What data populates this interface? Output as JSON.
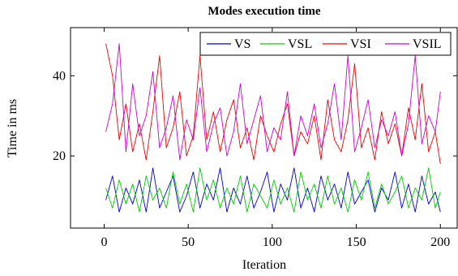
{
  "chart_data": {
    "type": "line",
    "title": "Modes execution time",
    "xlabel": "Iteration",
    "ylabel": "Time in ms",
    "xlim": [
      -20,
      210
    ],
    "ylim": [
      2,
      52
    ],
    "xticks": [
      0,
      50,
      100,
      150,
      200
    ],
    "xtick_labels": [
      "0",
      "50",
      "100",
      "150",
      "200"
    ],
    "yticks": [
      20,
      40
    ],
    "ytick_labels": [
      "20",
      "40"
    ],
    "grid": false,
    "legend": {
      "position": "top-right",
      "orientation": "horizontal"
    },
    "series": [
      {
        "name": "VS",
        "color": "#0000cc",
        "x": [
          1,
          5,
          9,
          13,
          17,
          21,
          25,
          29,
          33,
          37,
          41,
          45,
          49,
          53,
          57,
          61,
          65,
          69,
          73,
          77,
          81,
          85,
          89,
          93,
          97,
          101,
          105,
          109,
          113,
          117,
          121,
          125,
          129,
          133,
          137,
          141,
          145,
          149,
          153,
          157,
          161,
          165,
          169,
          173,
          177,
          181,
          185,
          189,
          193,
          197,
          200
        ],
        "values": [
          9,
          15,
          6,
          12,
          8,
          14,
          6,
          17,
          7,
          11,
          15,
          6,
          10,
          16,
          7,
          13,
          9,
          17,
          6,
          12,
          8,
          15,
          7,
          11,
          16,
          6,
          13,
          9,
          17,
          7,
          12,
          6,
          15,
          9,
          13,
          7,
          16,
          8,
          11,
          14,
          6,
          12,
          9,
          16,
          7,
          13,
          6,
          15,
          8,
          11,
          6
        ]
      },
      {
        "name": "VSL",
        "color": "#00cc00",
        "x": [
          1,
          5,
          9,
          13,
          17,
          21,
          25,
          29,
          33,
          37,
          41,
          45,
          49,
          53,
          57,
          61,
          65,
          69,
          73,
          77,
          81,
          85,
          89,
          93,
          97,
          101,
          105,
          109,
          113,
          117,
          121,
          125,
          129,
          133,
          137,
          141,
          145,
          149,
          153,
          157,
          161,
          165,
          169,
          173,
          177,
          181,
          185,
          189,
          193,
          197,
          200
        ],
        "values": [
          12,
          7,
          14,
          8,
          13,
          6,
          15,
          9,
          12,
          7,
          16,
          8,
          13,
          6,
          17,
          9,
          14,
          7,
          12,
          8,
          15,
          6,
          13,
          10,
          7,
          14,
          8,
          12,
          6,
          16,
          9,
          13,
          7,
          15,
          8,
          12,
          6,
          14,
          9,
          16,
          7,
          13,
          8,
          11,
          15,
          7,
          12,
          9,
          17,
          7,
          11
        ]
      },
      {
        "name": "VSI",
        "color": "#ee0000",
        "x": [
          1,
          5,
          9,
          13,
          17,
          21,
          25,
          29,
          33,
          37,
          41,
          45,
          49,
          53,
          57,
          61,
          65,
          69,
          73,
          77,
          81,
          85,
          89,
          93,
          97,
          101,
          105,
          109,
          113,
          117,
          121,
          125,
          129,
          133,
          137,
          141,
          145,
          149,
          153,
          157,
          161,
          165,
          169,
          173,
          177,
          181,
          185,
          189,
          193,
          197,
          200
        ],
        "values": [
          48,
          40,
          24,
          33,
          21,
          28,
          19,
          31,
          45,
          22,
          27,
          36,
          20,
          25,
          45,
          24,
          31,
          21,
          29,
          34,
          22,
          27,
          19,
          30,
          25,
          21,
          28,
          33,
          20,
          26,
          23,
          30,
          19,
          34,
          24,
          21,
          29,
          43,
          22,
          27,
          19,
          31,
          23,
          28,
          20,
          32,
          24,
          38,
          21,
          26,
          18
        ]
      },
      {
        "name": "VSIL",
        "color": "#cc00cc",
        "x": [
          1,
          5,
          9,
          13,
          17,
          21,
          25,
          29,
          33,
          37,
          41,
          45,
          49,
          53,
          57,
          61,
          65,
          69,
          73,
          77,
          81,
          85,
          89,
          93,
          97,
          101,
          105,
          109,
          113,
          117,
          121,
          125,
          129,
          133,
          137,
          141,
          145,
          149,
          153,
          157,
          161,
          165,
          169,
          173,
          177,
          181,
          185,
          189,
          193,
          197,
          200
        ],
        "values": [
          26,
          33,
          48,
          21,
          38,
          25,
          30,
          41,
          22,
          27,
          35,
          19,
          29,
          24,
          37,
          21,
          28,
          32,
          20,
          26,
          38,
          23,
          29,
          35,
          21,
          27,
          24,
          36,
          20,
          30,
          25,
          33,
          22,
          28,
          38,
          24,
          45,
          21,
          27,
          34,
          22,
          29,
          25,
          31,
          20,
          28,
          45,
          23,
          30,
          26,
          36
        ]
      }
    ]
  }
}
